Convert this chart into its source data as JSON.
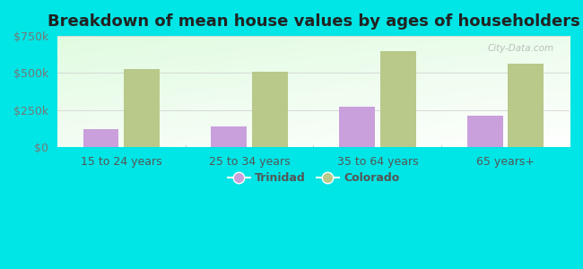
{
  "title": "Breakdown of mean house values by ages of householders",
  "categories": [
    "15 to 24 years",
    "25 to 34 years",
    "35 to 64 years",
    "65 years+"
  ],
  "trinidad_values": [
    125000,
    140000,
    275000,
    210000
  ],
  "colorado_values": [
    530000,
    510000,
    645000,
    565000
  ],
  "trinidad_color": "#c9a0dc",
  "colorado_color": "#b8c98a",
  "background_color": "#00e5e5",
  "ylim": [
    0,
    750000
  ],
  "yticks": [
    0,
    250000,
    500000,
    750000
  ],
  "ytick_labels": [
    "$0",
    "$250k",
    "$500k",
    "$750k"
  ],
  "title_fontsize": 13,
  "tick_fontsize": 9,
  "legend_fontsize": 9,
  "bar_width": 0.28,
  "watermark": "City-Data.com"
}
